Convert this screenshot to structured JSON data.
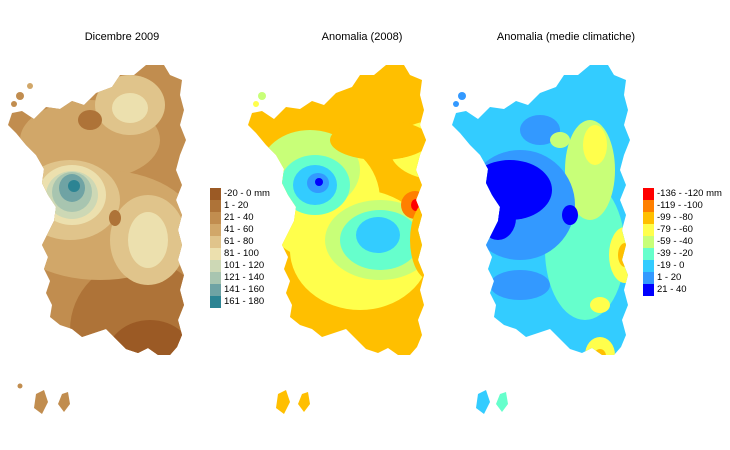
{
  "maps": [
    {
      "title": "Dicembre 2009",
      "legend": [
        {
          "label": "-20 - 0 mm",
          "color": "#9b5a25"
        },
        {
          "label": "1 - 20",
          "color": "#ae7338"
        },
        {
          "label": "21 - 40",
          "color": "#c18d4f"
        },
        {
          "label": "41 - 60",
          "color": "#d1a769"
        },
        {
          "label": "61 - 80",
          "color": "#e0c48b"
        },
        {
          "label": "81 - 100",
          "color": "#ece0ae"
        },
        {
          "label": "101 - 120",
          "color": "#cdd8b5"
        },
        {
          "label": "121 - 140",
          "color": "#a8c5b0"
        },
        {
          "label": "141 - 160",
          "color": "#6fa3a4"
        },
        {
          "label": "161 - 180",
          "color": "#2c8493"
        }
      ]
    },
    {
      "title": "Anomalia (2008)"
    },
    {
      "title": "Anomalia (medie climatiche)",
      "legend": [
        {
          "label": "-136 - -120 mm",
          "color": "#ff0000"
        },
        {
          "label": "-119 - -100",
          "color": "#ff7f00"
        },
        {
          "label": "-99 - -80",
          "color": "#ffbf00"
        },
        {
          "label": "-79 - -60",
          "color": "#ffff4c"
        },
        {
          "label": "-59 - -40",
          "color": "#c8ff78"
        },
        {
          "label": "-39 - -20",
          "color": "#66ffcc"
        },
        {
          "label": "-19 - 0",
          "color": "#33ccff"
        },
        {
          "label": "1 - 20",
          "color": "#3399ff"
        },
        {
          "label": "21 - 40",
          "color": "#0000ff"
        }
      ]
    }
  ]
}
